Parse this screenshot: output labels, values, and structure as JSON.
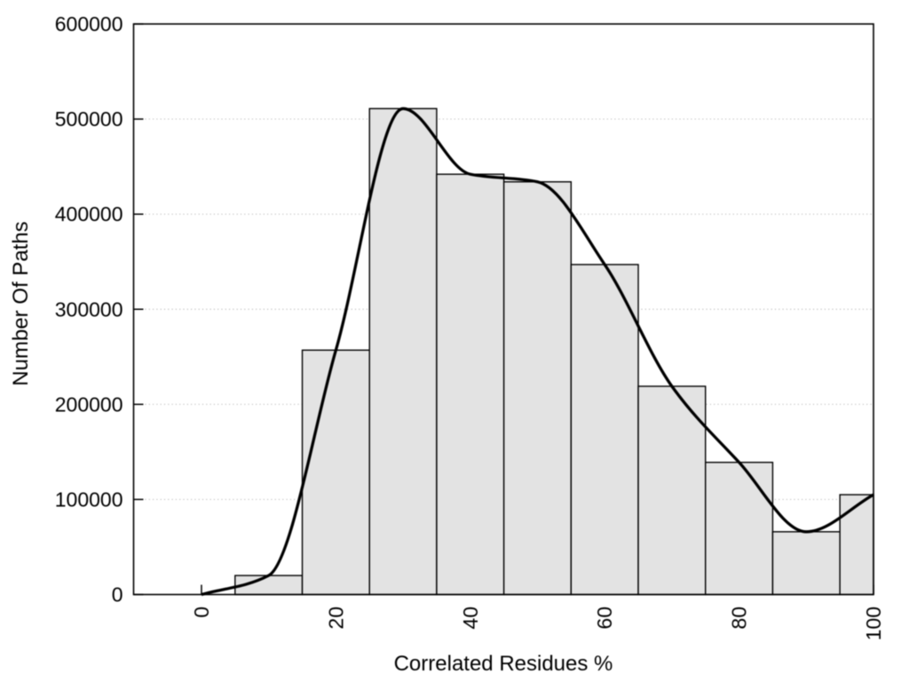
{
  "chart_data": {
    "type": "bar",
    "subtype": "histogram-with-smooth-curve",
    "title": "",
    "xlabel": "Correlated Residues %",
    "ylabel": "Number Of Paths",
    "bins": {
      "width": 10,
      "centers": [
        10,
        20,
        30,
        40,
        50,
        60,
        70,
        80,
        90,
        100
      ]
    },
    "values": [
      20000,
      257000,
      511000,
      442000,
      434000,
      347000,
      219000,
      139000,
      66000,
      105000
    ],
    "overlay_curve": {
      "type": "line",
      "name": "smooth-frequency-curve",
      "interpolation": "monotone-cubic",
      "points": [
        [
          0,
          0
        ],
        [
          10,
          20000
        ],
        [
          20,
          257000
        ],
        [
          30,
          511000
        ],
        [
          40,
          442000
        ],
        [
          50,
          434000
        ],
        [
          60,
          347000
        ],
        [
          70,
          219000
        ],
        [
          80,
          139000
        ],
        [
          90,
          66000
        ],
        [
          100,
          105000
        ]
      ]
    },
    "xlim": [
      -10.1,
      100
    ],
    "ylim": [
      0,
      600000
    ],
    "x_ticks": {
      "values": [
        0,
        20,
        40,
        60,
        80,
        100
      ],
      "labels": [
        "0",
        "20",
        "40",
        "60",
        "80",
        "100"
      ],
      "label_rotation_deg": -90
    },
    "y_ticks": {
      "values": [
        0,
        100000,
        200000,
        300000,
        400000,
        500000,
        600000
      ],
      "labels": [
        "0",
        "100000",
        "200000",
        "300000",
        "400000",
        "500000",
        "600000"
      ]
    },
    "grid": {
      "axis": "y",
      "style": "dotted",
      "color": "#bfbfbf"
    },
    "legend": "none",
    "style": {
      "background": "#ffffff",
      "bar_fill": "#e3e3e3",
      "bar_border": "#000000",
      "curve_color": "#000000",
      "frame_color": "#000000",
      "tick_color": "#000000",
      "text_color": "#000000",
      "tick_direction": "in"
    }
  }
}
